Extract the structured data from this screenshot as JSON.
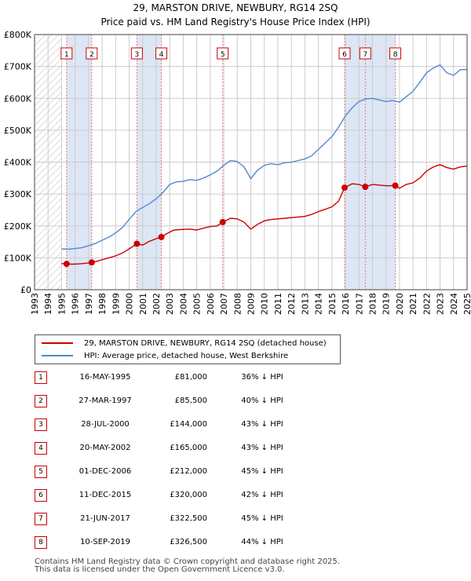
{
  "chart_data": {
    "type": "line",
    "title": "29, MARSTON DRIVE, NEWBURY, RG14 2SQ",
    "subtitle": "Price paid vs. HM Land Registry's House Price Index (HPI)",
    "xlim": [
      1993,
      2025
    ],
    "ylim": [
      0,
      800000
    ],
    "x_ticks": [
      "1993",
      "1994",
      "1995",
      "1996",
      "1997",
      "1998",
      "1999",
      "2000",
      "2001",
      "2002",
      "2003",
      "2004",
      "2005",
      "2006",
      "2007",
      "2008",
      "2009",
      "2010",
      "2011",
      "2012",
      "2013",
      "2014",
      "2015",
      "2016",
      "2017",
      "2018",
      "2019",
      "2020",
      "2021",
      "2022",
      "2023",
      "2024",
      "2025"
    ],
    "y_ticks": [
      {
        "value": 0,
        "label": "£0"
      },
      {
        "value": 100000,
        "label": "£100K"
      },
      {
        "value": 200000,
        "label": "£200K"
      },
      {
        "value": 300000,
        "label": "£300K"
      },
      {
        "value": 400000,
        "label": "£400K"
      },
      {
        "value": 500000,
        "label": "£500K"
      },
      {
        "value": 600000,
        "label": "£600K"
      },
      {
        "value": 700000,
        "label": "£700K"
      },
      {
        "value": 800000,
        "label": "£800K"
      }
    ],
    "series": [
      {
        "name": "29, MARSTON DRIVE, NEWBURY, RG14 2SQ (detached house)",
        "color": "#cc0000",
        "points": [
          [
            1995.0,
            82000
          ],
          [
            1995.37,
            81000
          ],
          [
            1995.8,
            80000
          ],
          [
            1996.3,
            81000
          ],
          [
            1996.8,
            83000
          ],
          [
            1997.23,
            85500
          ],
          [
            1997.6,
            89000
          ],
          [
            1998.0,
            94000
          ],
          [
            1998.5,
            100000
          ],
          [
            1999.0,
            106000
          ],
          [
            1999.5,
            115000
          ],
          [
            2000.0,
            128000
          ],
          [
            2000.57,
            144000
          ],
          [
            2001.0,
            140000
          ],
          [
            2001.5,
            152000
          ],
          [
            2002.0,
            160000
          ],
          [
            2002.38,
            165000
          ],
          [
            2002.8,
            176000
          ],
          [
            2003.3,
            187000
          ],
          [
            2004.0,
            189000
          ],
          [
            2004.5,
            190000
          ],
          [
            2005.0,
            187000
          ],
          [
            2005.5,
            193000
          ],
          [
            2006.0,
            198000
          ],
          [
            2006.5,
            200000
          ],
          [
            2006.92,
            212000
          ],
          [
            2007.5,
            224000
          ],
          [
            2008.0,
            222000
          ],
          [
            2008.5,
            212000
          ],
          [
            2009.0,
            190000
          ],
          [
            2009.5,
            205000
          ],
          [
            2010.0,
            216000
          ],
          [
            2010.5,
            220000
          ],
          [
            2011.0,
            222000
          ],
          [
            2011.5,
            224000
          ],
          [
            2012.0,
            226000
          ],
          [
            2012.5,
            228000
          ],
          [
            2013.0,
            230000
          ],
          [
            2013.5,
            236000
          ],
          [
            2014.0,
            245000
          ],
          [
            2014.5,
            252000
          ],
          [
            2015.0,
            260000
          ],
          [
            2015.5,
            278000
          ],
          [
            2015.94,
            320000
          ],
          [
            2016.5,
            332000
          ],
          [
            2017.0,
            330000
          ],
          [
            2017.47,
            322500
          ],
          [
            2018.0,
            330000
          ],
          [
            2018.5,
            328000
          ],
          [
            2019.0,
            326000
          ],
          [
            2019.69,
            326500
          ],
          [
            2020.0,
            318000
          ],
          [
            2020.5,
            330000
          ],
          [
            2021.0,
            335000
          ],
          [
            2021.5,
            350000
          ],
          [
            2022.0,
            372000
          ],
          [
            2022.5,
            385000
          ],
          [
            2023.0,
            392000
          ],
          [
            2023.5,
            383000
          ],
          [
            2024.0,
            378000
          ],
          [
            2024.5,
            385000
          ],
          [
            2025.0,
            388000
          ]
        ]
      },
      {
        "name": "HPI: Average price, detached house, West Berkshire",
        "color": "#5588cc",
        "points": [
          [
            1995.0,
            128000
          ],
          [
            1995.5,
            127000
          ],
          [
            1996.0,
            129000
          ],
          [
            1996.5,
            132000
          ],
          [
            1997.0,
            138000
          ],
          [
            1997.5,
            145000
          ],
          [
            1998.0,
            155000
          ],
          [
            1998.5,
            165000
          ],
          [
            1999.0,
            178000
          ],
          [
            1999.5,
            195000
          ],
          [
            2000.0,
            220000
          ],
          [
            2000.5,
            245000
          ],
          [
            2001.0,
            258000
          ],
          [
            2001.5,
            270000
          ],
          [
            2002.0,
            285000
          ],
          [
            2002.5,
            305000
          ],
          [
            2003.0,
            330000
          ],
          [
            2003.5,
            338000
          ],
          [
            2004.0,
            340000
          ],
          [
            2004.5,
            345000
          ],
          [
            2005.0,
            343000
          ],
          [
            2005.5,
            350000
          ],
          [
            2006.0,
            360000
          ],
          [
            2006.5,
            372000
          ],
          [
            2007.0,
            390000
          ],
          [
            2007.5,
            405000
          ],
          [
            2008.0,
            402000
          ],
          [
            2008.5,
            385000
          ],
          [
            2009.0,
            348000
          ],
          [
            2009.5,
            375000
          ],
          [
            2010.0,
            390000
          ],
          [
            2010.5,
            395000
          ],
          [
            2011.0,
            392000
          ],
          [
            2011.5,
            398000
          ],
          [
            2012.0,
            400000
          ],
          [
            2012.5,
            405000
          ],
          [
            2013.0,
            410000
          ],
          [
            2013.5,
            420000
          ],
          [
            2014.0,
            440000
          ],
          [
            2014.5,
            460000
          ],
          [
            2015.0,
            480000
          ],
          [
            2015.5,
            510000
          ],
          [
            2016.0,
            545000
          ],
          [
            2016.5,
            570000
          ],
          [
            2017.0,
            590000
          ],
          [
            2017.5,
            598000
          ],
          [
            2018.0,
            600000
          ],
          [
            2018.5,
            595000
          ],
          [
            2019.0,
            590000
          ],
          [
            2019.5,
            593000
          ],
          [
            2020.0,
            588000
          ],
          [
            2020.5,
            605000
          ],
          [
            2021.0,
            622000
          ],
          [
            2021.5,
            650000
          ],
          [
            2022.0,
            680000
          ],
          [
            2022.5,
            695000
          ],
          [
            2023.0,
            705000
          ],
          [
            2023.5,
            680000
          ],
          [
            2024.0,
            672000
          ],
          [
            2024.5,
            690000
          ],
          [
            2025.0,
            690000
          ]
        ]
      }
    ],
    "sales": [
      {
        "num": "1",
        "x": 1995.37,
        "price": 81000
      },
      {
        "num": "2",
        "x": 1997.23,
        "price": 85500
      },
      {
        "num": "3",
        "x": 2000.57,
        "price": 144000
      },
      {
        "num": "4",
        "x": 2002.38,
        "price": 165000
      },
      {
        "num": "5",
        "x": 2006.92,
        "price": 212000
      },
      {
        "num": "6",
        "x": 2015.94,
        "price": 320000
      },
      {
        "num": "7",
        "x": 2017.47,
        "price": 322500
      },
      {
        "num": "8",
        "x": 2019.69,
        "price": 326500
      }
    ],
    "shaded_periods": [
      [
        1995.37,
        1997.23
      ],
      [
        2000.57,
        2002.38
      ],
      [
        2015.94,
        2017.47
      ],
      [
        2017.47,
        2019.69
      ]
    ],
    "hatched_period": [
      1993,
      1995
    ]
  },
  "colors": {
    "plot_bg": "#ffffff",
    "shade": "#dde6f5",
    "grid": "#cccccc",
    "hatch": "#bbbbbb",
    "marker": "#cc0000",
    "vline": "#e87777"
  },
  "legend": {
    "property_label": "29, MARSTON DRIVE, NEWBURY, RG14 2SQ (detached house)",
    "hpi_label": "HPI: Average price, detached house, West Berkshire"
  },
  "table": [
    {
      "num": "1",
      "date": "16-MAY-1995",
      "price": "£81,000",
      "diff": "36% ↓ HPI"
    },
    {
      "num": "2",
      "date": "27-MAR-1997",
      "price": "£85,500",
      "diff": "40% ↓ HPI"
    },
    {
      "num": "3",
      "date": "28-JUL-2000",
      "price": "£144,000",
      "diff": "43% ↓ HPI"
    },
    {
      "num": "4",
      "date": "20-MAY-2002",
      "price": "£165,000",
      "diff": "43% ↓ HPI"
    },
    {
      "num": "5",
      "date": "01-DEC-2006",
      "price": "£212,000",
      "diff": "45% ↓ HPI"
    },
    {
      "num": "6",
      "date": "11-DEC-2015",
      "price": "£320,000",
      "diff": "42% ↓ HPI"
    },
    {
      "num": "7",
      "date": "21-JUN-2017",
      "price": "£322,500",
      "diff": "45% ↓ HPI"
    },
    {
      "num": "8",
      "date": "10-SEP-2019",
      "price": "£326,500",
      "diff": "44% ↓ HPI"
    }
  ],
  "footer": {
    "line1": "Contains HM Land Registry data © Crown copyright and database right 2025.",
    "line2": "This data is licensed under the Open Government Licence v3.0."
  }
}
